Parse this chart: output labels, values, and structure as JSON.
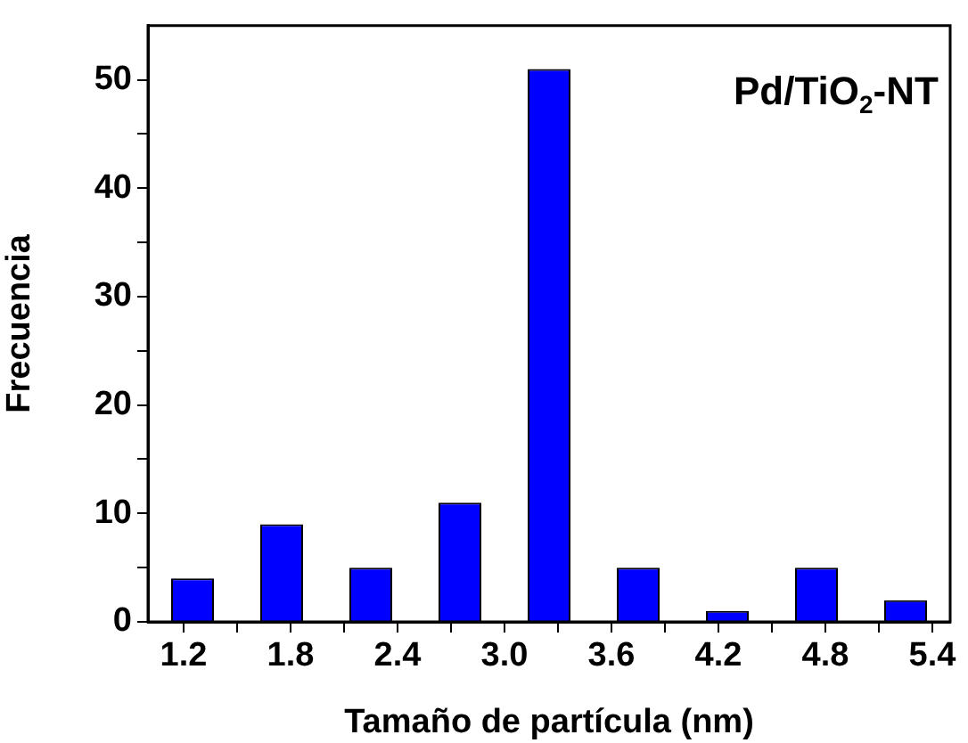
{
  "chart_data": {
    "type": "histogram",
    "xlabel": "Tamaño de partícula (nm)",
    "ylabel": "Frecuencia",
    "annotations": [
      "Pd/TiO$_{2}$-NT"
    ],
    "bins": [
      1.0,
      1.5,
      2.0,
      2.5,
      3.0,
      3.5,
      4.0,
      4.5,
      5.0,
      5.5
    ],
    "values": [
      4,
      9,
      5,
      11,
      51,
      5,
      1,
      5,
      2
    ],
    "color": "#0000ff",
    "xlim": [
      1.0,
      5.5
    ],
    "xticks": [
      1.2,
      {
        "value": 1.5,
        "label": null
      },
      1.8,
      {
        "value": 2.1,
        "label": null
      },
      2.4,
      {
        "value": 2.7,
        "label": null
      },
      {
        "value": 3.0,
        "label": "3.0"
      },
      {
        "value": 3.3,
        "label": null
      },
      3.6,
      {
        "value": 3.9,
        "label": null
      },
      4.2,
      {
        "value": 4.5,
        "label": null
      },
      4.8,
      {
        "value": 5.1,
        "label": null
      },
      5.4
    ],
    "ylim": [
      0,
      55
    ],
    "yticks": [
      0,
      {
        "value": 5,
        "label": null
      },
      10,
      {
        "value": 15,
        "label": null
      },
      20,
      {
        "value": 25,
        "label": null
      },
      30,
      {
        "value": 35,
        "label": null
      },
      40,
      {
        "value": 45,
        "label": null
      },
      50
    ],
    "grid": false,
    "legend": false
  }
}
